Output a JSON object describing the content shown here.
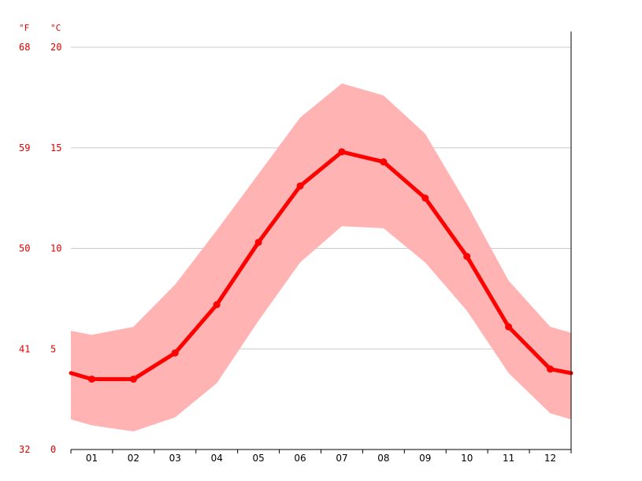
{
  "chart_data": {
    "type": "line",
    "x": [
      "01",
      "02",
      "03",
      "04",
      "05",
      "06",
      "07",
      "08",
      "09",
      "10",
      "11",
      "12"
    ],
    "series": [
      {
        "values": [
          3.5,
          3.5,
          4.8,
          7.2,
          10.3,
          13.1,
          14.8,
          14.3,
          12.5,
          9.6,
          6.1,
          4.0
        ]
      }
    ],
    "band": {
      "upper": [
        5.7,
        6.1,
        8.2,
        10.9,
        13.7,
        16.5,
        18.2,
        17.6,
        15.7,
        12.2,
        8.4,
        6.1
      ],
      "lower": [
        1.2,
        0.9,
        1.6,
        3.3,
        6.4,
        9.3,
        11.1,
        11.0,
        9.3,
        6.9,
        3.8,
        1.8
      ]
    },
    "y_left_unit": "°F",
    "y_right_unit": "°C",
    "y_ticks_c": [
      "0",
      "5",
      "10",
      "15",
      "20"
    ],
    "y_ticks_f": [
      "32",
      "41",
      "50",
      "59",
      "68"
    ],
    "ylim": [
      0,
      20
    ],
    "edge_left": 3.8,
    "edge_right": 3.8,
    "edge_upper_left": 5.9,
    "edge_upper_right": 5.8,
    "edge_lower_left": 1.5,
    "edge_lower_right": 1.5,
    "grid": true,
    "colors": {
      "line": "#ff0000",
      "band": "#ffb3b3",
      "text": "#e00000"
    }
  }
}
